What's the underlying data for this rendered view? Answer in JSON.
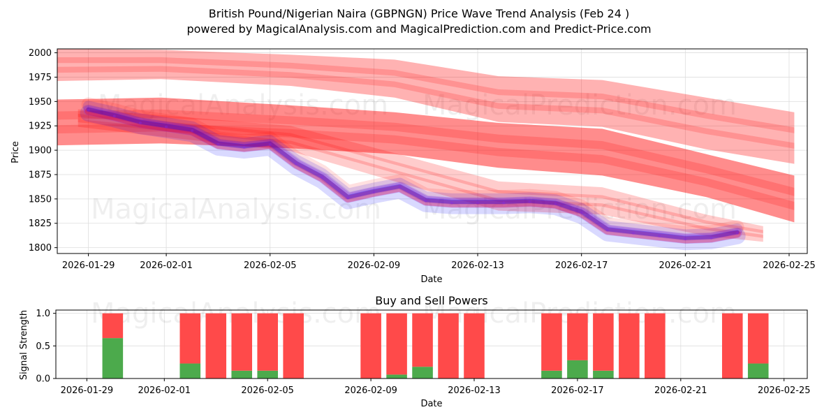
{
  "title": "British Pound/Nigerian Naira (GBPNGN) Price Wave Trend Analysis (Feb 24 )",
  "subtitle": "powered by MagicalAnalysis.com and MagicalPrediction.com and Predict-Price.com",
  "watermarks": [
    "MagicalAnalysis.com",
    "MagicalPrediction.com"
  ],
  "chart_data": [
    {
      "type": "area",
      "title": "",
      "xlabel": "Date",
      "ylabel": "Price",
      "xlim": [
        "2026-01-27.8",
        "2026-02-25.7"
      ],
      "ylim": [
        1794,
        2004
      ],
      "yticks": [
        1800,
        1825,
        1850,
        1875,
        1900,
        1925,
        1950,
        1975,
        2000
      ],
      "xticks": [
        "2026-01-29",
        "2026-02-01",
        "2026-02-05",
        "2026-02-09",
        "2026-02-13",
        "2026-02-17",
        "2026-02-21",
        "2026-02-25"
      ],
      "grid": true,
      "colors": {
        "red": "#ff0000",
        "blue": "#0000ff",
        "purple": "#8a2be2",
        "grid": "#dddddd"
      },
      "historical_line": {
        "x": [
          0,
          1,
          2,
          3,
          4,
          5,
          6,
          7,
          8,
          9,
          10,
          11,
          12,
          13,
          14,
          15,
          16,
          17,
          18,
          19,
          20,
          21,
          22,
          23,
          24,
          25
        ],
        "y": [
          1941,
          1935,
          1928,
          1924,
          1920,
          1906,
          1903,
          1906,
          1886,
          1872,
          1851,
          1857,
          1862,
          1848,
          1846,
          1846,
          1846,
          1847,
          1845,
          1836,
          1818,
          1815,
          1812,
          1809,
          1810,
          1815
        ]
      },
      "prediction_bands": [
        {
          "name": "upper-wide",
          "x": [
            -1.2,
            2.8,
            7.8,
            11.8,
            15.8,
            19.8,
            23.8,
            27.2
          ],
          "upper": [
            2004,
            2003,
            1998,
            1993,
            1976,
            1972,
            1954,
            1939
          ],
          "lower": [
            1971,
            1973,
            1966,
            1954,
            1929,
            1924,
            1901,
            1886
          ]
        },
        {
          "name": "mid-wide",
          "x": [
            -1.2,
            2.8,
            7.8,
            11.8,
            15.8,
            19.8,
            23.8,
            27.2
          ],
          "upper": [
            1952,
            1954,
            1946,
            1939,
            1928,
            1922,
            1896,
            1874
          ],
          "lower": [
            1905,
            1907,
            1902,
            1896,
            1882,
            1874,
            1852,
            1826
          ]
        },
        {
          "name": "lower-narrow",
          "x": [
            -0.4,
            2.8,
            7.8,
            11.8,
            15.8,
            19.8,
            23.8,
            26.0
          ],
          "upper": [
            1942,
            1936,
            1925,
            1897,
            1868,
            1862,
            1834,
            1822
          ],
          "lower": [
            1924,
            1914,
            1899,
            1868,
            1838,
            1834,
            1812,
            1806
          ]
        }
      ]
    },
    {
      "type": "bar",
      "title": "Buy and Sell Powers",
      "xlabel": "Date",
      "ylabel": "Signal Strength",
      "ylim": [
        0,
        1.05
      ],
      "yticks": [
        "0.0",
        "0.5",
        "1.0"
      ],
      "xticks": [
        "2026-01-29",
        "2026-02-01",
        "2026-02-05",
        "2026-02-09",
        "2026-02-13",
        "2026-02-17",
        "2026-02-21",
        "2026-02-25"
      ],
      "categories": [
        "2026-01-30",
        "2026-02-02",
        "2026-02-03",
        "2026-02-04",
        "2026-02-05",
        "2026-02-06",
        "2026-02-09",
        "2026-02-10",
        "2026-02-11",
        "2026-02-12",
        "2026-02-13",
        "2026-02-16",
        "2026-02-17",
        "2026-02-18",
        "2026-02-19",
        "2026-02-20",
        "2026-02-23",
        "2026-02-24"
      ],
      "x": [
        1,
        4,
        5,
        6,
        7,
        8,
        11,
        12,
        13,
        14,
        15,
        18,
        19,
        20,
        21,
        22,
        25,
        26
      ],
      "series": [
        {
          "name": "Buy",
          "color": "#4caa4c",
          "values": [
            0.62,
            0.23,
            0.0,
            0.12,
            0.12,
            0.0,
            0.0,
            0.06,
            0.18,
            0.0,
            0.0,
            0.12,
            0.28,
            0.12,
            0.0,
            0.0,
            0.0,
            0.23
          ]
        },
        {
          "name": "Sell",
          "color": "#ff4a4a",
          "values": [
            0.38,
            0.77,
            1.0,
            0.88,
            0.88,
            1.0,
            1.0,
            0.94,
            0.82,
            1.0,
            1.0,
            0.88,
            0.72,
            0.88,
            1.0,
            1.0,
            1.0,
            0.77
          ]
        }
      ]
    }
  ]
}
